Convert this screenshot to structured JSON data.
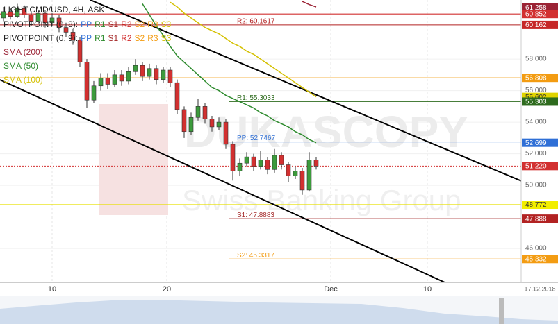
{
  "chart_data": {
    "type": "candlestick",
    "title": "LIGHT.CMD/USD, 4H, ASK",
    "watermark": [
      "DUKASCOPY",
      "Swiss Banking Group"
    ],
    "ylim": [
      43.85,
      61.74
    ],
    "yticks": [
      {
        "value": 58,
        "label": "58.000"
      },
      {
        "value": 56,
        "label": "56.000"
      },
      {
        "value": 54,
        "label": "54.000"
      },
      {
        "value": 52,
        "label": "52.000"
      },
      {
        "value": 50,
        "label": "50.000"
      },
      {
        "value": 46,
        "label": "46.000"
      }
    ],
    "xticks": [
      "10",
      "20",
      "Dec",
      "10",
      "17.12.2018"
    ],
    "up_color": "#3c9b3c",
    "down_color": "#d23030",
    "open": [
      60.6,
      61.0,
      60.7,
      61.2,
      60.8,
      60.4,
      60.9,
      60.3,
      60.6,
      60.0,
      59.7,
      59.2,
      57.8,
      55.4,
      56.3,
      56.8,
      56.4,
      57.0,
      56.6,
      57.2,
      57.6,
      56.9,
      57.4,
      56.7,
      57.3,
      56.5,
      54.8,
      53.4,
      54.3,
      55.0,
      54.2,
      53.7,
      54.0,
      52.6,
      50.9,
      51.4,
      51.8,
      51.2,
      51.6,
      51.0,
      51.9,
      51.3,
      50.6,
      50.9,
      49.7,
      51.6
    ],
    "high": [
      61.3,
      61.2,
      61.5,
      61.4,
      61.0,
      61.1,
      61.1,
      60.9,
      60.8,
      60.3,
      59.9,
      59.4,
      58.0,
      56.6,
      57.1,
      57.1,
      57.3,
      57.3,
      57.5,
      58.0,
      57.8,
      57.7,
      57.6,
      57.5,
      57.5,
      56.7,
      55.0,
      54.6,
      55.5,
      55.2,
      54.4,
      54.3,
      54.2,
      52.8,
      51.7,
      52.1,
      52.0,
      52.2,
      51.8,
      52.3,
      52.1,
      51.5,
      51.2,
      51.1,
      52.1,
      51.8
    ],
    "low": [
      60.4,
      60.5,
      60.6,
      60.6,
      60.1,
      60.2,
      60.0,
      60.1,
      59.7,
      59.4,
      58.9,
      57.5,
      54.9,
      55.2,
      56.0,
      56.1,
      56.2,
      56.3,
      56.4,
      57.0,
      56.6,
      56.7,
      56.4,
      56.5,
      56.2,
      54.5,
      53.0,
      53.2,
      54.1,
      53.9,
      53.4,
      53.5,
      52.3,
      50.3,
      50.6,
      51.2,
      50.9,
      51.0,
      50.7,
      50.8,
      51.0,
      50.2,
      50.4,
      49.4,
      49.6,
      51.0
    ],
    "close": [
      61.0,
      60.7,
      61.2,
      60.8,
      60.4,
      60.9,
      60.3,
      60.6,
      60.0,
      59.7,
      59.2,
      57.8,
      55.4,
      56.3,
      56.8,
      56.4,
      57.0,
      56.6,
      57.2,
      57.6,
      56.9,
      57.4,
      56.7,
      57.3,
      56.5,
      54.8,
      53.4,
      54.3,
      55.0,
      54.2,
      53.7,
      54.0,
      52.6,
      50.9,
      51.4,
      51.8,
      51.2,
      51.6,
      51.0,
      51.9,
      51.3,
      50.6,
      50.9,
      49.7,
      51.6,
      51.22
    ],
    "series": [
      {
        "name": "SMA (200)",
        "color": "#9b2335",
        "values": [
          null,
          null,
          null,
          null,
          null,
          null,
          null,
          null,
          null,
          null,
          null,
          null,
          null,
          null,
          null,
          null,
          null,
          null,
          null,
          null,
          null,
          null,
          null,
          null,
          null,
          null,
          null,
          null,
          null,
          null,
          null,
          null,
          null,
          null,
          null,
          null,
          null,
          null,
          null,
          null,
          null,
          null,
          null,
          61.65,
          61.45,
          61.3
        ]
      },
      {
        "name": "SMA (50)",
        "color": "#2e8b2e",
        "values": [
          null,
          null,
          null,
          null,
          null,
          null,
          null,
          null,
          null,
          null,
          null,
          null,
          null,
          null,
          null,
          null,
          null,
          null,
          null,
          null,
          61.5,
          60.8,
          60.1,
          59.5,
          58.8,
          58.2,
          57.8,
          57.4,
          57.0,
          56.6,
          56.2,
          56.0,
          55.7,
          55.5,
          55.3,
          55.1,
          54.9,
          54.6,
          54.4,
          54.1,
          53.9,
          53.7,
          53.4,
          53.2,
          52.9,
          52.7
        ]
      },
      {
        "name": "SMA (100)",
        "color": "#d4c000",
        "values": [
          null,
          null,
          null,
          null,
          null,
          null,
          null,
          null,
          null,
          null,
          null,
          null,
          null,
          null,
          null,
          null,
          null,
          null,
          null,
          null,
          null,
          null,
          null,
          null,
          61.6,
          61.3,
          60.9,
          60.6,
          60.3,
          60.0,
          59.8,
          59.6,
          59.3,
          59.0,
          58.8,
          58.5,
          58.3,
          58.0,
          57.7,
          57.4,
          57.1,
          56.8,
          56.5,
          56.2,
          55.9,
          55.6
        ]
      }
    ],
    "pivot_legends": [
      {
        "name": "PIVOTPOINT (0, 8):",
        "items": [
          {
            "text": "PP",
            "color": "#2f6fd6"
          },
          {
            "text": "R1",
            "color": "#2e8b2e"
          },
          {
            "text": "S1",
            "color": "#a52a2a"
          },
          {
            "text": "R2",
            "color": "#d23030"
          },
          {
            "text": "S2",
            "color": "#f39c12"
          },
          {
            "text": "R3",
            "color": "#f39c12"
          },
          {
            "text": "S3",
            "color": "#d4c000"
          }
        ]
      },
      {
        "name": "PIVOTPOINT (0, 9):",
        "items": [
          {
            "text": "PP",
            "color": "#2f6fd6"
          },
          {
            "text": "R1",
            "color": "#2e8b2e"
          },
          {
            "text": "S1",
            "color": "#a52a2a"
          },
          {
            "text": "R2",
            "color": "#d23030"
          },
          {
            "text": "S2",
            "color": "#f39c12"
          },
          {
            "text": "R3",
            "color": "#f39c12"
          },
          {
            "text": "S3",
            "color": "#d4c000"
          }
        ]
      }
    ],
    "levels": [
      {
        "value": 60.852,
        "color": "#d23030"
      },
      {
        "value": 56.808,
        "color": "#f39c12"
      },
      {
        "value": 48.772,
        "color": "#e8e000"
      }
    ],
    "current": {
      "value": 51.22,
      "color": "#d23030"
    },
    "pivots": [
      {
        "text": "R2: 60.1617",
        "value": 60.1617,
        "color": "#b22222"
      },
      {
        "text": "R1: 55.3033",
        "value": 55.3033,
        "color": "#2e6b1e"
      },
      {
        "text": "PP: 52.7467",
        "value": 52.7467,
        "color": "#2f6fd6"
      },
      {
        "text": "S1: 47.8883",
        "value": 47.8883,
        "color": "#a52a2a"
      },
      {
        "text": "S2: 45.3317",
        "value": 45.3317,
        "color": "#f39c12"
      }
    ],
    "axis_labels": [
      {
        "value": 61.258,
        "label": "61.258",
        "color": "#9b2335",
        "text_color": "#fff"
      },
      {
        "value": 60.852,
        "label": "60.852",
        "color": "#d23030",
        "text_color": "#fff"
      },
      {
        "value": 60.162,
        "label": "60.162",
        "color": "#c62828",
        "text_color": "#fff"
      },
      {
        "value": 56.808,
        "label": "56.808",
        "color": "#f39c12",
        "text_color": "#fff"
      },
      {
        "value": 55.602,
        "label": "55.602",
        "color": "#e0d400",
        "text_color": "#333"
      },
      {
        "value": 55.303,
        "label": "55.303",
        "color": "#2e6b1e",
        "text_color": "#fff"
      },
      {
        "value": 52.699,
        "label": "52.699",
        "color": "#2f6fd6",
        "text_color": "#fff"
      },
      {
        "value": 51.22,
        "label": "51.220",
        "color": "#d23030",
        "text_color": "#fff"
      },
      {
        "value": 48.772,
        "label": "48.772",
        "color": "#f2ee00",
        "text_color": "#333"
      },
      {
        "value": 47.888,
        "label": "47.888",
        "color": "#b22222",
        "text_color": "#fff"
      },
      {
        "value": 45.332,
        "label": "45.332",
        "color": "#f39c12",
        "text_color": "#fff"
      }
    ]
  }
}
